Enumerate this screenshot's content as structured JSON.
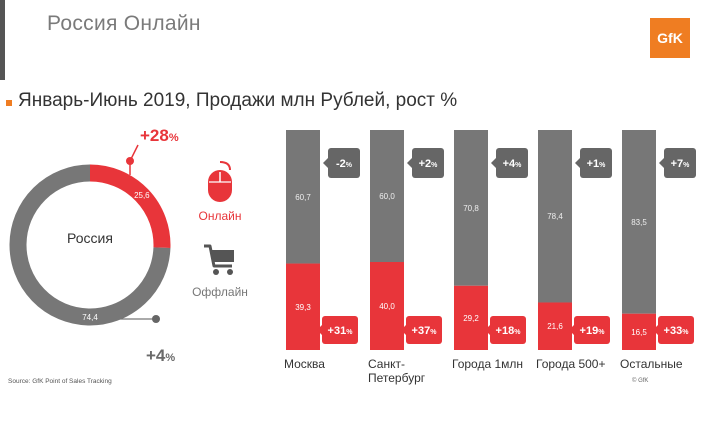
{
  "header": {
    "title": "Россия Онлайн",
    "logo_text": "GfK",
    "subtitle": "Январь-Июнь 2019, Продажи млн Рублей, рост %"
  },
  "donut": {
    "center_label": "Россия",
    "online_value": "25,6",
    "offline_value": "74,4",
    "online_growth": "+28",
    "offline_growth": "+4",
    "growth_unit": "%"
  },
  "legend": {
    "online_label": "Онлайн",
    "offline_label": "Оффлайн"
  },
  "chart_data": {
    "type": "bar",
    "stacked": true,
    "ylim": [
      0,
      100
    ],
    "categories": [
      "Москва",
      "Санкт-Петербург",
      "Города 1млн",
      "Города 500+",
      "Остальные"
    ],
    "category_display": [
      [
        "Москва"
      ],
      [
        "Санкт-",
        "Петербург"
      ],
      [
        "Города 1млн"
      ],
      [
        "Города 500+"
      ],
      [
        "Остальные"
      ]
    ],
    "series": [
      {
        "name": "Онлайн",
        "values": [
          39.3,
          40.0,
          29.2,
          21.6,
          16.5
        ],
        "labels": [
          "39,3",
          "40,0",
          "29,2",
          "21,6",
          "16,5"
        ],
        "growth": [
          "+31",
          "+37",
          "+18",
          "+19",
          "+33"
        ],
        "color": "#e8353a"
      },
      {
        "name": "Оффлайн",
        "values": [
          60.7,
          60.0,
          70.8,
          78.4,
          83.5
        ],
        "labels": [
          "60,7",
          "60,0",
          "70,8",
          "78,4",
          "83,5"
        ],
        "growth": [
          "-2",
          "+2",
          "+4",
          "+1",
          "+7"
        ],
        "color": "#777777"
      }
    ],
    "growth_unit": "%"
  },
  "footer": {
    "source": "Source: GfK Point of Sales Tracking",
    "copyright": "© GfK"
  },
  "colors": {
    "accent": "#e8353a",
    "offline": "#777777",
    "gfk_orange": "#ef7d22"
  }
}
